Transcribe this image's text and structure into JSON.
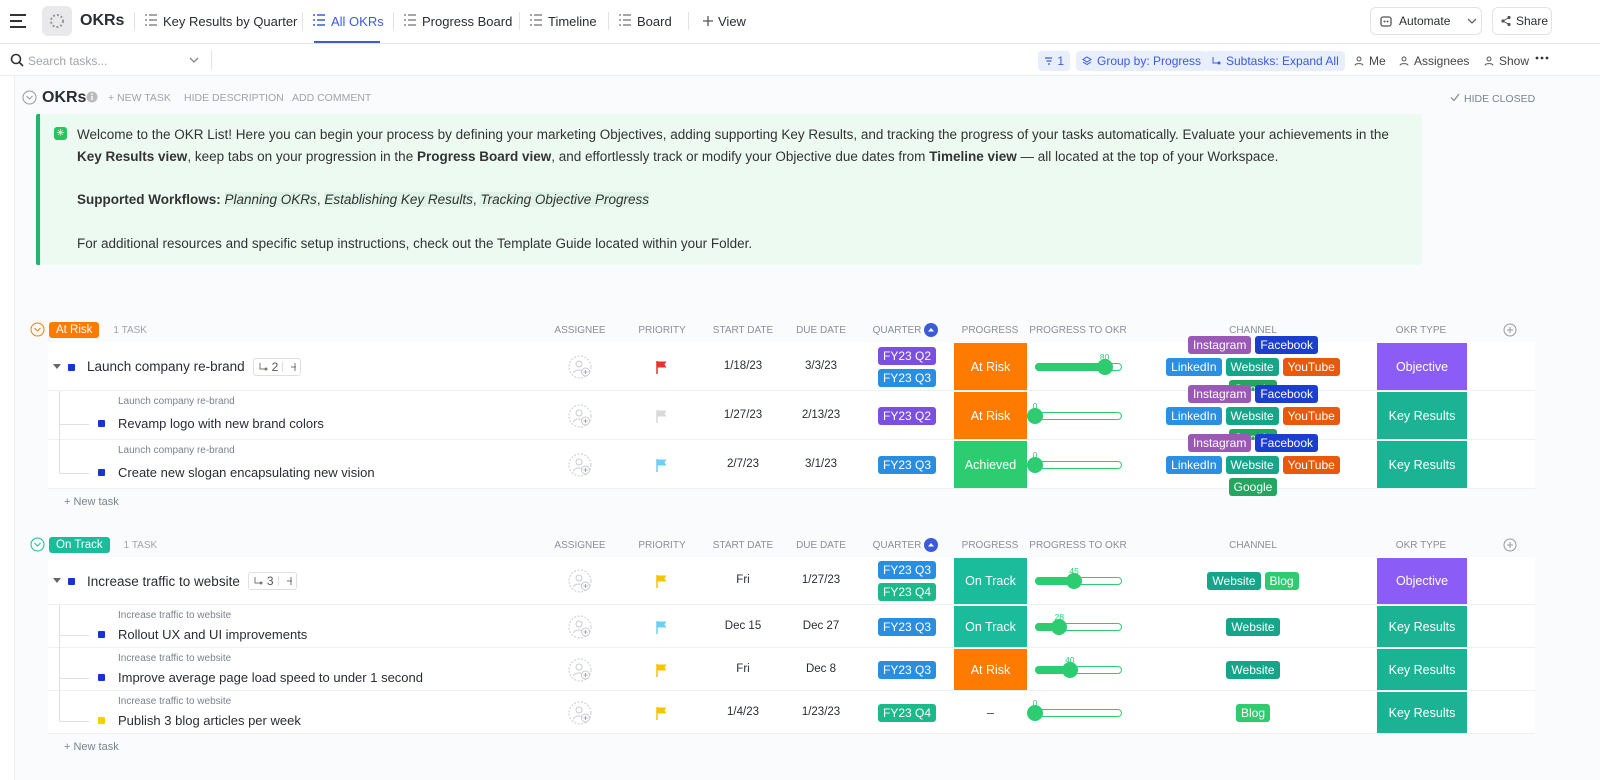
{
  "topbar": {
    "space": "OKRs",
    "tabs": [
      "Key Results by Quarter",
      "All OKRs",
      "Progress Board",
      "Timeline",
      "Board"
    ],
    "active_tab": 1,
    "add_view": "View",
    "automate": "Automate",
    "share": "Share"
  },
  "toolbar": {
    "search_placeholder": "Search tasks...",
    "filter_count": 1,
    "group_by": "Group by: Progress",
    "subtasks": "Subtasks: Expand All",
    "me": "Me",
    "assignees": "Assignees",
    "show": "Show"
  },
  "list": {
    "title": "OKRs",
    "actions": [
      "+ NEW TASK",
      "HIDE DESCRIPTION",
      "ADD COMMENT"
    ],
    "hide_closed": "HIDE CLOSED",
    "description": [
      [
        "Welcome to the OKR List! Here you can begin your process by defining your marketing Objectives, adding supporting Key Results, and tracking the progress of your tasks automatically. Evaluate your achievements in the ",
        {
          "text": "Key Results view",
          "style": "bold"
        },
        ", keep tabs on your progression in the ",
        {
          "text": "Progress Board view",
          "style": "bold"
        },
        ", and effortlessly track or modify your Objective due dates from ",
        {
          "text": "Timeline view",
          "style": "bold"
        },
        " — all located at the top of your Workspace."
      ],
      [
        {
          "text": "Supported Workflows: ",
          "style": "bold"
        },
        {
          "text": "Planning OKRs",
          "style": "italic"
        },
        ", ",
        {
          "text": "Establishing Key Results",
          "style": "italic"
        },
        ", ",
        {
          "text": "Tracking Objective Progress",
          "style": "italic"
        }
      ],
      [
        "For additional resources and specific setup instructions, check out the Template Guide located within your Folder."
      ]
    ]
  },
  "columns": [
    "ASSIGNEE",
    "PRIORITY",
    "START DATE",
    "DUE DATE",
    "QUARTER",
    "PROGRESS",
    "PROGRESS TO OKR",
    "CHANNEL",
    "OKR TYPE"
  ],
  "tag_colors": {
    "FY23 Q2": "#7b4fe0",
    "FY23 Q3": "#2a8ee0",
    "FY23 Q4": "#1cb98a",
    "Instagram": "#9b59b6",
    "Facebook": "#1b3fcc",
    "LinkedIn": "#2b8fe2",
    "Website": "#17a58a",
    "YouTube": "#e8590c",
    "Google": "#25a55f",
    "Blog": "#2ecc71",
    "At Risk": "#ff7b00",
    "Achieved": "#2ecc71",
    "On Track": "#1abc9c",
    "Objective": "#8b5cf6",
    "Key Results": "#1bb394"
  },
  "groups": [
    {
      "name": "At Risk",
      "count": "1 TASK",
      "new_task": "+ New task",
      "rows": [
        {
          "name": "Launch company re-brand",
          "subtasks": 2,
          "status_color": "#1533d6",
          "priority_color": "#e5312f",
          "start": "1/18/23",
          "due": "3/3/23",
          "quarters": [
            "FY23 Q2",
            "FY23 Q3"
          ],
          "progress": "At Risk",
          "okr_progress": 80,
          "channels": [
            "Instagram",
            "Facebook",
            "LinkedIn",
            "Website",
            "YouTube",
            "Google"
          ],
          "okr_type": "Objective"
        },
        {
          "parent": "Launch company re-brand",
          "name": "Revamp logo with new brand colors",
          "status_color": "#1533d6",
          "priority_color": "#d9d9d9",
          "start": "1/27/23",
          "due": "2/13/23",
          "quarters": [
            "FY23 Q2"
          ],
          "progress": "At Risk",
          "okr_progress": 0,
          "channels": [
            "Instagram",
            "Facebook",
            "LinkedIn",
            "Website",
            "YouTube",
            "Google"
          ],
          "okr_type": "Key Results"
        },
        {
          "parent": "Launch company re-brand",
          "name": "Create new slogan encapsulating new vision",
          "status_color": "#1533d6",
          "priority_color": "#6ccff6",
          "start": "2/7/23",
          "due": "3/1/23",
          "quarters": [
            "FY23 Q3"
          ],
          "progress": "Achieved",
          "okr_progress": 0,
          "channels": [
            "Instagram",
            "Facebook",
            "LinkedIn",
            "Website",
            "YouTube",
            "Google"
          ],
          "okr_type": "Key Results"
        }
      ]
    },
    {
      "name": "On Track",
      "count": "1 TASK",
      "new_task": "+ New task",
      "rows": [
        {
          "name": "Increase traffic to website",
          "subtasks": 3,
          "status_color": "#1533d6",
          "priority_color": "#f5c400",
          "start": "Fri",
          "due": "1/27/23",
          "quarters": [
            "FY23 Q3",
            "FY23 Q4"
          ],
          "progress": "On Track",
          "okr_progress": 45,
          "channels": [
            "Website",
            "Blog"
          ],
          "okr_type": "Objective"
        },
        {
          "parent": "Increase traffic to website",
          "name": "Rollout UX and UI improvements",
          "status_color": "#1533d6",
          "priority_color": "#6ccff6",
          "start": "Dec 15",
          "due": "Dec 27",
          "quarters": [
            "FY23 Q3"
          ],
          "progress": "On Track",
          "okr_progress": 28,
          "channels": [
            "Website"
          ],
          "okr_type": "Key Results"
        },
        {
          "parent": "Increase traffic to website",
          "name": "Improve average page load speed to under 1 second",
          "status_color": "#1533d6",
          "priority_color": "#f5c400",
          "start": "Fri",
          "due": "Dec 8",
          "quarters": [
            "FY23 Q3"
          ],
          "progress": "At Risk",
          "okr_progress": 40,
          "channels": [
            "Website"
          ],
          "okr_type": "Key Results"
        },
        {
          "parent": "Increase traffic to website",
          "name": "Publish 3 blog articles per week",
          "status_color": "#f5d000",
          "priority_color": "#f5c400",
          "start": "1/4/23",
          "due": "1/23/23",
          "quarters": [
            "FY23 Q4"
          ],
          "progress": "–",
          "okr_progress": 0,
          "channels": [
            "Blog"
          ],
          "okr_type": "Key Results"
        }
      ]
    }
  ]
}
